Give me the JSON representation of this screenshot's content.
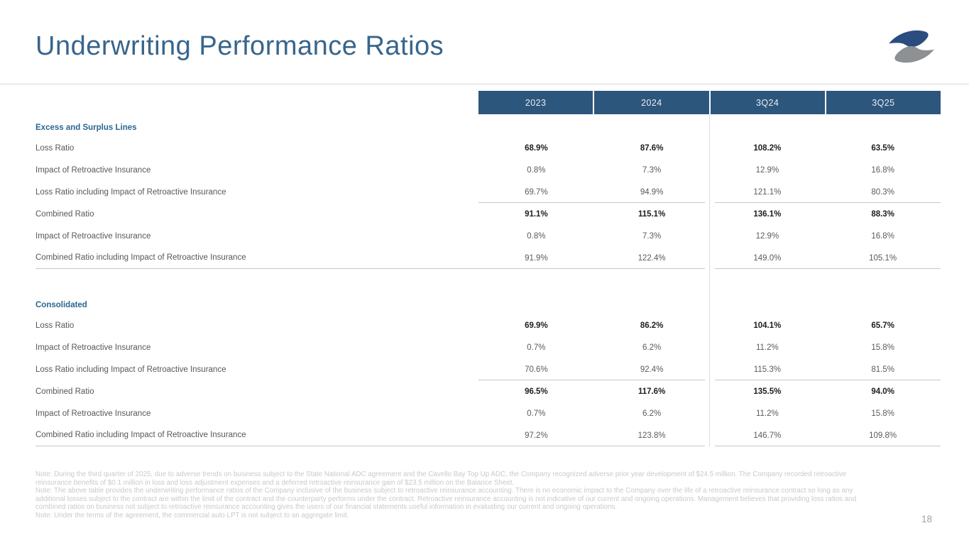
{
  "slide": {
    "title": "Underwriting Performance Ratios",
    "page_number": "18",
    "logo": "s-swoosh-logo"
  },
  "colors": {
    "header_bar": "#2d567d",
    "title_text": "#38658c",
    "section_label": "#2a6691",
    "logo_blue": "#2b4c7f",
    "logo_gray": "#8d9194"
  },
  "table": {
    "columns": [
      "2023",
      "2024",
      "3Q24",
      "3Q25"
    ],
    "sections": [
      {
        "name": "Excess and Surplus Lines",
        "rows": [
          {
            "label": "Loss Ratio",
            "bold": true,
            "rule": "none",
            "values": [
              "68.9%",
              "87.6%",
              "108.2%",
              "63.5%"
            ]
          },
          {
            "label": "Impact of Retroactive Insurance",
            "bold": false,
            "rule": "none",
            "values": [
              "0.8%",
              "7.3%",
              "12.9%",
              "16.8%"
            ]
          },
          {
            "label": "Loss Ratio including Impact of Retroactive Insurance",
            "bold": false,
            "rule": "values",
            "values": [
              "69.7%",
              "94.9%",
              "121.1%",
              "80.3%"
            ]
          },
          {
            "label": "Combined Ratio",
            "bold": true,
            "rule": "none",
            "values": [
              "91.1%",
              "115.1%",
              "136.1%",
              "88.3%"
            ]
          },
          {
            "label": "Impact of Retroactive Insurance",
            "bold": false,
            "rule": "none",
            "values": [
              "0.8%",
              "7.3%",
              "12.9%",
              "16.8%"
            ]
          },
          {
            "label": "Combined Ratio including Impact of Retroactive Insurance",
            "bold": false,
            "rule": "full",
            "values": [
              "91.9%",
              "122.4%",
              "149.0%",
              "105.1%"
            ]
          }
        ]
      },
      {
        "name": "Consolidated",
        "rows": [
          {
            "label": "Loss Ratio",
            "bold": true,
            "rule": "none",
            "values": [
              "69.9%",
              "86.2%",
              "104.1%",
              "65.7%"
            ]
          },
          {
            "label": "Impact of Retroactive Insurance",
            "bold": false,
            "rule": "none",
            "values": [
              "0.7%",
              "6.2%",
              "11.2%",
              "15.8%"
            ]
          },
          {
            "label": "Loss Ratio including Impact of Retroactive Insurance",
            "bold": false,
            "rule": "values",
            "values": [
              "70.6%",
              "92.4%",
              "115.3%",
              "81.5%"
            ]
          },
          {
            "label": "Combined Ratio",
            "bold": true,
            "rule": "none",
            "values": [
              "96.5%",
              "117.6%",
              "135.5%",
              "94.0%"
            ]
          },
          {
            "label": "Impact of Retroactive Insurance",
            "bold": false,
            "rule": "none",
            "values": [
              "0.7%",
              "6.2%",
              "11.2%",
              "15.8%"
            ]
          },
          {
            "label": "Combined Ratio including Impact of Retroactive Insurance",
            "bold": false,
            "rule": "full",
            "values": [
              "97.2%",
              "123.8%",
              "146.7%",
              "109.8%"
            ]
          }
        ]
      }
    ]
  },
  "footnotes": [
    "Note: During the third quarter of 2025, due to adverse trends on business subject to the State National ADC agreement and the Cavello Bay Top Up ADC, the Company recognized adverse prior year development of $24.5 million. The Company recorded retroactive reinsurance benefits of $0.1 million in loss and loss adjustment expenses and a deferred retroactive reinsurance gain of $23.5 million on the Balance Sheet.",
    "Note: The above table provides the underwriting performance ratios of the Company inclusive of the business subject to retroactive reinsurance accounting. There is no economic impact to the Company over the life of a retroactive reinsurance contract so long as any additional losses subject to the contract are within the limit of the contract and the counterparty performs under the contract. Retroactive reinsurance accounting is not indicative of our current and ongoing operations. Management believes that providing loss ratios and combined ratios on business not subject to retroactive reinsurance accounting gives the users of our financial statements useful information in evaluating our current and ongoing operations.",
    "Note: Under the terms of the agreement, the commercial auto LPT is not subject to an aggregate limit."
  ]
}
